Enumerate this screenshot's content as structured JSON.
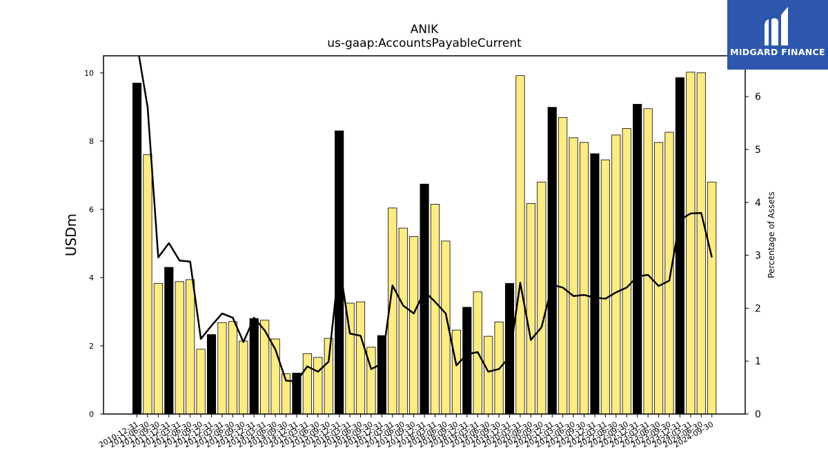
{
  "logo": {
    "text": "MIDGARD FINANCE"
  },
  "colors": {
    "annual_bar": "#000000",
    "quarterly_bar": "#ffec80",
    "line": "#000000",
    "logo_bg": "#2c57ad"
  },
  "chart_data": {
    "type": "bar",
    "title": "ANIK",
    "subtitle": "us-gaap:AccountsPayableCurrent",
    "ylabel": "USDm",
    "y2label": "Percentage of Assets",
    "ylim": [
      0,
      10.5
    ],
    "y2lim": [
      0,
      6.77
    ],
    "yticks": [
      0,
      2,
      4,
      6,
      8,
      10
    ],
    "y2ticks": [
      0,
      1,
      2,
      3,
      4,
      5,
      6
    ],
    "categories": [
      "2010-12-31",
      "2011-06-30",
      "2011-09-30",
      "2011-12-31",
      "2012-03-31",
      "2012-06-30",
      "2012-09-30",
      "2012-12-31",
      "2013-03-31",
      "2013-06-30",
      "2013-09-30",
      "2013-12-31",
      "2014-03-31",
      "2014-06-30",
      "2014-09-30",
      "2014-12-31",
      "2015-03-31",
      "2015-06-30",
      "2015-09-30",
      "2015-12-31",
      "2016-03-31",
      "2016-06-30",
      "2016-09-30",
      "2016-12-31",
      "2017-03-31",
      "2017-06-30",
      "2017-09-30",
      "2017-12-31",
      "2018-03-31",
      "2018-06-30",
      "2018-09-30",
      "2018-12-31",
      "2019-03-31",
      "2019-06-30",
      "2019-09-30",
      "2019-12-31",
      "2020-03-31",
      "2020-06-30",
      "2020-09-30",
      "2020-12-31",
      "2021-03-31",
      "2021-06-30",
      "2021-09-30",
      "2021-12-31",
      "2022-03-31",
      "2022-06-30",
      "2022-09-30",
      "2022-12-31",
      "2023-03-31",
      "2023-06-30",
      "2023-09-30",
      "2023-12-31",
      "2024-03-31",
      "2024-06-30",
      "2024-09-30"
    ],
    "series": [
      {
        "kind": "bar",
        "values": [
          9.7,
          7.6,
          3.83,
          4.3,
          3.88,
          3.94,
          1.9,
          2.33,
          2.68,
          2.71,
          2.14,
          2.8,
          2.75,
          2.2,
          1.18,
          1.2,
          1.77,
          1.66,
          2.22,
          8.3,
          3.25,
          3.29,
          1.96,
          2.3,
          6.04,
          5.45,
          5.2,
          6.74,
          6.15,
          5.07,
          2.46,
          3.13,
          3.58,
          2.28,
          2.7,
          3.83,
          9.92,
          6.17,
          6.8,
          8.99,
          8.69,
          8.1,
          7.96,
          7.63,
          7.45,
          8.18,
          8.37,
          9.08,
          8.95,
          7.96,
          8.26,
          9.86,
          10.02,
          10.0,
          6.8
        ],
        "annual": [
          true,
          false,
          false,
          true,
          false,
          false,
          false,
          true,
          false,
          false,
          false,
          true,
          false,
          false,
          false,
          true,
          false,
          false,
          false,
          true,
          false,
          false,
          false,
          true,
          false,
          false,
          false,
          true,
          false,
          false,
          false,
          true,
          false,
          false,
          false,
          true,
          false,
          false,
          false,
          true,
          false,
          false,
          false,
          true,
          false,
          false,
          false,
          true,
          false,
          false,
          false,
          true,
          false,
          false,
          false
        ]
      },
      {
        "kind": "line",
        "axis": "right",
        "values": [
          7.0,
          5.8,
          2.96,
          3.23,
          2.9,
          2.88,
          1.42,
          1.67,
          1.9,
          1.82,
          1.36,
          1.82,
          1.58,
          1.22,
          0.63,
          0.62,
          0.9,
          0.8,
          0.99,
          2.85,
          1.52,
          1.48,
          0.85,
          0.95,
          2.43,
          2.05,
          1.9,
          2.32,
          2.12,
          1.9,
          0.92,
          1.13,
          1.17,
          0.8,
          0.85,
          1.08,
          2.48,
          1.4,
          1.64,
          2.44,
          2.39,
          2.23,
          2.25,
          2.2,
          2.18,
          2.3,
          2.39,
          2.6,
          2.63,
          2.42,
          2.52,
          3.67,
          3.79,
          3.8,
          2.96
        ]
      }
    ]
  }
}
